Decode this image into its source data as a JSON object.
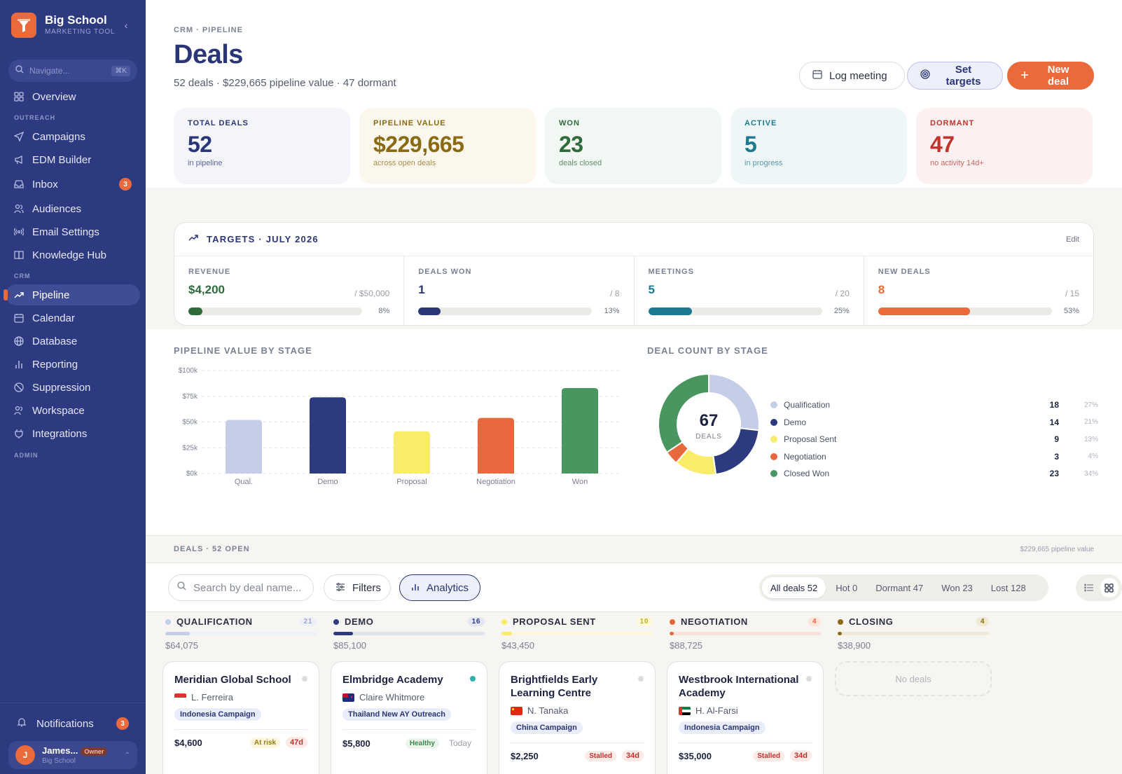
{
  "sidebar": {
    "brand": {
      "name": "Big School",
      "sub": "MARKETING TOOL"
    },
    "search": {
      "placeholder": "Navigate...",
      "shortcut": "⌘K"
    },
    "sections": {
      "outreach": "OUTREACH",
      "crm": "CRM",
      "admin": "ADMIN"
    },
    "items": [
      {
        "label": "Overview"
      },
      {
        "label": "Campaigns"
      },
      {
        "label": "EDM Builder"
      },
      {
        "label": "Inbox",
        "badge": "3"
      },
      {
        "label": "Audiences"
      },
      {
        "label": "Email Settings"
      },
      {
        "label": "Knowledge Hub"
      },
      {
        "label": "Pipeline"
      },
      {
        "label": "Calendar"
      },
      {
        "label": "Database"
      },
      {
        "label": "Reporting"
      },
      {
        "label": "Suppression"
      },
      {
        "label": "Workspace"
      },
      {
        "label": "Integrations"
      }
    ],
    "notifications": {
      "label": "Notifications",
      "badge": "3"
    },
    "user": {
      "initial": "J",
      "name": "James...",
      "role": "Owner",
      "org": "Big School"
    }
  },
  "header": {
    "breadcrumb": "CRM · PIPELINE",
    "title": "Deals",
    "subtitle": "52 deals · $229,665 pipeline value · 47 dormant",
    "actions": {
      "log_meeting": "Log meeting",
      "set_targets": "Set targets",
      "new_deal": "New deal"
    }
  },
  "kpis": [
    {
      "label": "TOTAL DEALS",
      "value": "52",
      "sub": "in pipeline",
      "color": "#2a3677",
      "bg": "#f3f5fb"
    },
    {
      "label": "PIPELINE VALUE",
      "value": "$229,665",
      "sub": "across open deals",
      "color": "#8c6a12",
      "bg": "#fcf7ec"
    },
    {
      "label": "WON",
      "value": "23",
      "sub": "deals closed",
      "color": "#2f6a3b",
      "bg": "#f1f7f2"
    },
    {
      "label": "ACTIVE",
      "value": "5",
      "sub": "in progress",
      "color": "#1b7a90",
      "bg": "#eff6f8"
    },
    {
      "label": "DORMANT",
      "value": "47",
      "sub": "no activity 14d+",
      "color": "#c0342d",
      "bg": "#fcf1f0"
    }
  ],
  "targets": {
    "title": "TARGETS · JULY 2026",
    "edit": "Edit",
    "items": [
      {
        "label": "REVENUE",
        "value": "$4,200",
        "goal": "/ $50,000",
        "pct_label": "8%",
        "pct": 0.08,
        "color": "#2f6a3b"
      },
      {
        "label": "DEALS WON",
        "value": "1",
        "goal": "/ 8",
        "pct_label": "13%",
        "pct": 0.13,
        "color": "#2a3677"
      },
      {
        "label": "MEETINGS",
        "value": "5",
        "goal": "/ 20",
        "pct_label": "25%",
        "pct": 0.25,
        "color": "#1b7a90"
      },
      {
        "label": "NEW DEALS",
        "value": "8",
        "goal": "/ 15",
        "pct_label": "53%",
        "pct": 0.53,
        "color": "#ea6a3c"
      }
    ]
  },
  "chart_data": [
    {
      "type": "bar",
      "title": "PIPELINE VALUE BY STAGE",
      "categories": [
        "Qual.",
        "Demo",
        "Proposal",
        "Negotiation",
        "Won"
      ],
      "values": [
        52000,
        74000,
        41000,
        54000,
        83000
      ],
      "colors": [
        "#c5cde8",
        "#2d3a80",
        "#f9ec6b",
        "#e8683d",
        "#4a9660"
      ],
      "yticks": [
        "$0k",
        "$25k",
        "$50k",
        "$75k",
        "$100k"
      ],
      "ylim": [
        0,
        100000
      ],
      "grid": true
    },
    {
      "type": "pie",
      "title": "DEAL COUNT BY STAGE",
      "center_value": "67",
      "center_label": "DEALS",
      "labels": [
        "Qualification",
        "Demo",
        "Proposal Sent",
        "Negotiation",
        "Closed Won"
      ],
      "values": [
        18,
        14,
        9,
        3,
        23
      ],
      "percents": [
        "27%",
        "21%",
        "13%",
        "4%",
        "34%"
      ],
      "colors": [
        "#c5cde8",
        "#2d3a80",
        "#f9ec6b",
        "#e8683d",
        "#4a9660"
      ],
      "legend": "right"
    }
  ],
  "deals": {
    "title": "DEALS · 52 OPEN",
    "total": "$229,665 pipeline value",
    "search_placeholder": "Search by deal name...",
    "filters": "Filters",
    "analytics": "Analytics",
    "segments": [
      "All deals 52",
      "Hot 0",
      "Dormant 47",
      "Won 23",
      "Lost 128"
    ]
  },
  "columns": [
    {
      "title": "QUALIFICATION",
      "count": "21",
      "total": "$64,075",
      "color": "#c5cde8",
      "count_bg": "#eef0f8",
      "count_fg": "#9aa3cf",
      "track": "#eef0f8",
      "fill": 0.16,
      "card": {
        "name": "Meridian Global School",
        "contact": "L. Ferreira",
        "flag": "sg",
        "tag": "Indonesia Campaign",
        "value": "$4,600",
        "status": "At risk",
        "status_bg": "#fdf5dc",
        "status_fg": "#9a7a12",
        "age": "47d",
        "dot": "#dcdcdc"
      }
    },
    {
      "title": "DEMO",
      "count": "16",
      "total": "$85,100",
      "color": "#2d3a80",
      "count_bg": "#e3e6f3",
      "count_fg": "#2d3a80",
      "track": "#e1e3ee",
      "fill": 0.13,
      "card": {
        "name": "Elmbridge Academy",
        "contact": "Claire Whitmore",
        "flag": "nz",
        "tag": "Thailand New AY Outreach",
        "value": "$5,800",
        "status": "Healthy",
        "status_bg": "#eaf5ec",
        "status_fg": "#3b8a4d",
        "age": "Today",
        "dot": "#2fb1a8"
      }
    },
    {
      "title": "PROPOSAL SENT",
      "count": "10",
      "total": "$43,450",
      "color": "#f9ec6b",
      "count_bg": "#fdf8d9",
      "count_fg": "#c7b127",
      "track": "#fbf6dd",
      "fill": 0.07,
      "card": {
        "name": "Brightfields Early Learning Centre",
        "contact": "N. Tanaka",
        "flag": "cn",
        "tag": "China Campaign",
        "value": "$2,250",
        "status": "Stalled",
        "status_bg": "#fde9e6",
        "status_fg": "#c0342d",
        "age": "34d",
        "dot": "#dcdcdc"
      }
    },
    {
      "title": "NEGOTIATION",
      "count": "4",
      "total": "$88,725",
      "color": "#e8683d",
      "count_bg": "#fde5dc",
      "count_fg": "#e8683d",
      "track": "#f9e2da",
      "fill": 0.03,
      "card": {
        "name": "Westbrook International Academy",
        "contact": "H. Al-Farsi",
        "flag": "ae",
        "tag": "Indonesia Campaign",
        "value": "$35,000",
        "status": "Stalled",
        "status_bg": "#fde9e6",
        "status_fg": "#c0342d",
        "age": "34d",
        "dot": "#dcdcdc"
      }
    },
    {
      "title": "CLOSING",
      "count": "4",
      "total": "$38,900",
      "color": "#8c6a12",
      "count_bg": "#f0e9d4",
      "count_fg": "#8c6a12",
      "track": "#efe9d8",
      "fill": 0.03,
      "empty": "No deals"
    }
  ]
}
